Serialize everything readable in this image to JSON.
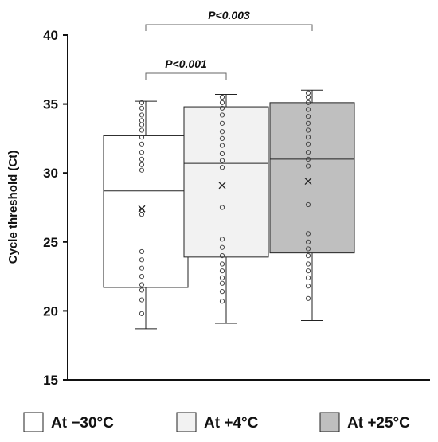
{
  "chart_data": {
    "type": "boxplot",
    "title": "",
    "xlabel": "",
    "ylabel": "Cycle threshold (Ct)",
    "ylim": [
      15,
      40
    ],
    "yticks": [
      15,
      20,
      25,
      30,
      35,
      40
    ],
    "grid": false,
    "legend_position": "bottom",
    "series": [
      {
        "name": "At −30°C",
        "color": "#ffffff",
        "whisker_low": 18.7,
        "q1": 21.7,
        "median": 28.7,
        "q3": 32.7,
        "whisker_high": 35.2,
        "mean": 27.4,
        "points": [
          35.1,
          34.7,
          34.2,
          33.8,
          33.5,
          33.1,
          32.6,
          32.1,
          31.5,
          31.0,
          30.6,
          30.2,
          27.3,
          27.0,
          24.3,
          23.7,
          23.1,
          22.5,
          21.9,
          21.5,
          20.8,
          19.8
        ]
      },
      {
        "name": "At +4°C",
        "color": "#f2f2f2",
        "whisker_low": 19.1,
        "q1": 23.9,
        "median": 30.7,
        "q3": 34.8,
        "whisker_high": 35.7,
        "mean": 29.1,
        "points": [
          35.5,
          35.1,
          34.7,
          34.2,
          33.6,
          33.0,
          32.5,
          32.0,
          31.4,
          30.9,
          30.4,
          27.5,
          25.2,
          24.6,
          24.0,
          23.4,
          22.9,
          22.4,
          22.0,
          21.4,
          20.7
        ]
      },
      {
        "name": "At +25°C",
        "color": "#bfbfbf",
        "whisker_low": 19.3,
        "q1": 24.2,
        "median": 31.0,
        "q3": 35.1,
        "whisker_high": 36.0,
        "mean": 29.4,
        "points": [
          35.8,
          35.5,
          35.1,
          34.6,
          34.1,
          33.6,
          33.1,
          32.6,
          32.1,
          31.5,
          31.0,
          30.5,
          27.7,
          25.6,
          25.0,
          24.5,
          24.0,
          23.4,
          22.9,
          22.4,
          21.8,
          20.9
        ]
      }
    ],
    "annotations": [
      {
        "from": 0,
        "to": 1,
        "label": "P<0.001"
      },
      {
        "from": 0,
        "to": 2,
        "label": "P<0.003"
      }
    ]
  }
}
